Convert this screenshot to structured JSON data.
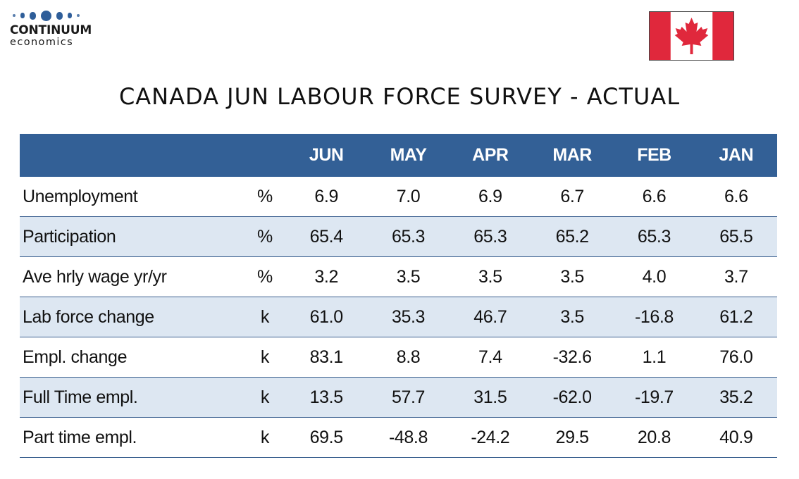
{
  "logo": {
    "name": "CONTINUUM",
    "sub": "economics",
    "color": "#2f5e99"
  },
  "flag": {
    "icon": "canada-flag-icon",
    "red": "#e0283c"
  },
  "title": "CANADA JUN LABOUR FORCE SURVEY - ACTUAL",
  "table": {
    "headers": [
      "",
      "",
      "JUN",
      "MAY",
      "APR",
      "MAR",
      "FEB",
      "JAN"
    ],
    "header_color": "#336096",
    "stripe_color": "#dde7f2",
    "rows": [
      {
        "label": "Unemployment",
        "unit": "%",
        "values": [
          "6.9",
          "7.0",
          "6.9",
          "6.7",
          "6.6",
          "6.6"
        ]
      },
      {
        "label": "Participation",
        "unit": "%",
        "values": [
          "65.4",
          "65.3",
          "65.3",
          "65.2",
          "65.3",
          "65.5"
        ]
      },
      {
        "label": "Ave hrly wage yr/yr",
        "unit": "%",
        "values": [
          "3.2",
          "3.5",
          "3.5",
          "3.5",
          "4.0",
          "3.7"
        ]
      },
      {
        "label": "Lab force change",
        "unit": "k",
        "values": [
          "61.0",
          "35.3",
          "46.7",
          "3.5",
          "-16.8",
          "61.2"
        ]
      },
      {
        "label": "Empl. change",
        "unit": "k",
        "values": [
          "83.1",
          "8.8",
          "7.4",
          "-32.6",
          "1.1",
          "76.0"
        ]
      },
      {
        "label": "Full Time empl.",
        "unit": "k",
        "values": [
          "13.5",
          "57.7",
          "31.5",
          "-62.0",
          "-19.7",
          "35.2"
        ]
      },
      {
        "label": "Part time empl.",
        "unit": "k",
        "values": [
          "69.5",
          "-48.8",
          "-24.2",
          "29.5",
          "20.8",
          "40.9"
        ]
      }
    ]
  }
}
